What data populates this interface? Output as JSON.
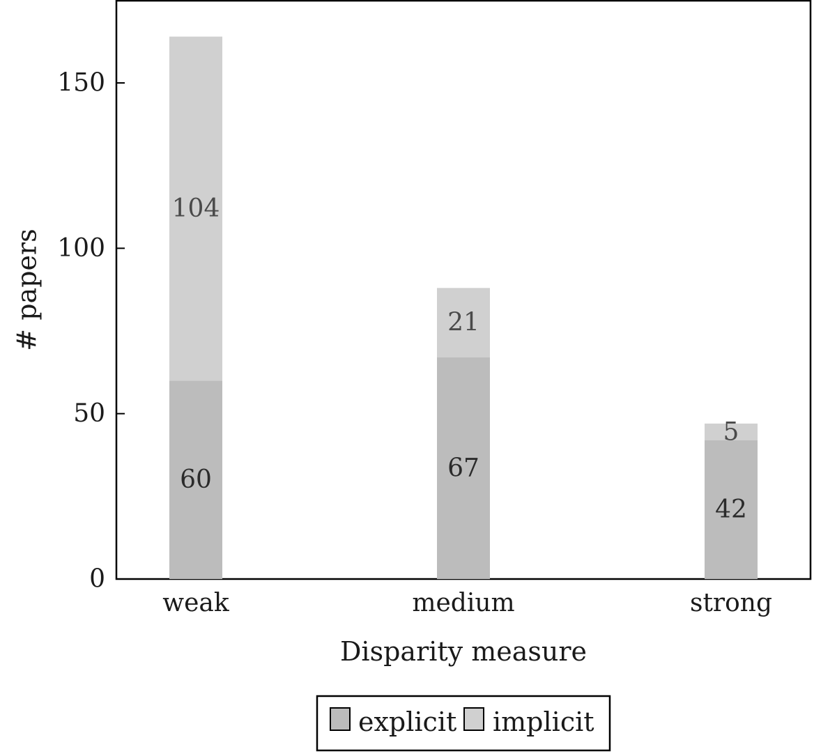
{
  "chart_data": {
    "type": "bar",
    "stacked": true,
    "categories": [
      "weak",
      "medium",
      "strong"
    ],
    "series": [
      {
        "name": "explicit",
        "values": [
          60,
          67,
          42
        ],
        "color": "#bcbcbc"
      },
      {
        "name": "implicit",
        "values": [
          104,
          21,
          5
        ],
        "color": "#d0d0d0"
      }
    ],
    "title": "",
    "xlabel": "Disparity measure",
    "ylabel": "# papers",
    "ylim": [
      0,
      175
    ],
    "yticks": [
      0,
      50,
      100,
      150
    ],
    "grid": false,
    "legend_position": "bottom-center",
    "data_labels": true
  }
}
